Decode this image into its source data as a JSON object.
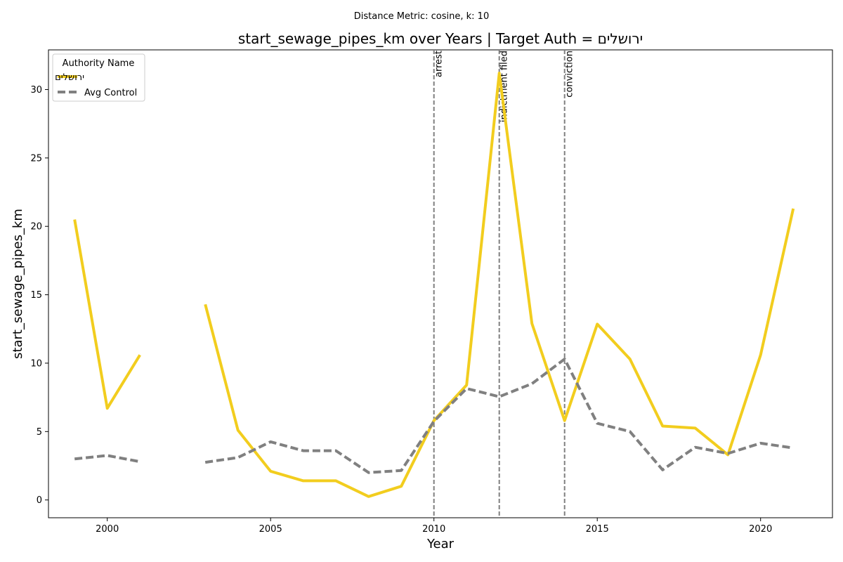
{
  "chart_data": {
    "type": "line",
    "subtitle": "Distance Metric: cosine, k: 10",
    "title": "start_sewage_pipes_km over Years | Target Auth = ירושלים",
    "xlabel": "Year",
    "ylabel": "start_sewage_pipes_km",
    "xlim": [
      1998.2,
      2022.2
    ],
    "ylim": [
      -1.3,
      32.9
    ],
    "xticks": [
      2000,
      2005,
      2010,
      2015,
      2020
    ],
    "yticks": [
      0,
      5,
      10,
      15,
      20,
      25,
      30
    ],
    "legend": {
      "title": "Authority Name",
      "position": "upper-left"
    },
    "series": [
      {
        "name": "ירושלים",
        "color": "#f2cd1e",
        "style": "solid",
        "points": [
          [
            1999,
            20.5
          ],
          [
            2000,
            6.7
          ],
          [
            2001,
            10.6
          ],
          [
            2002,
            null
          ],
          [
            2003,
            14.3
          ],
          [
            2004,
            5.1
          ],
          [
            2005,
            2.1
          ],
          [
            2006,
            1.4
          ],
          [
            2007,
            1.4
          ],
          [
            2008,
            0.25
          ],
          [
            2009,
            1.0
          ],
          [
            2010,
            5.8
          ],
          [
            2011,
            8.4
          ],
          [
            2012,
            31.2
          ],
          [
            2013,
            12.9
          ],
          [
            2014,
            5.8
          ],
          [
            2015,
            12.85
          ],
          [
            2016,
            10.3
          ],
          [
            2017,
            5.4
          ],
          [
            2018,
            5.25
          ],
          [
            2019,
            3.3
          ],
          [
            2020,
            10.6
          ],
          [
            2021,
            21.3
          ]
        ]
      },
      {
        "name": "Avg Control",
        "color": "#808080",
        "style": "dashed",
        "points": [
          [
            1999,
            3.0
          ],
          [
            2000,
            3.25
          ],
          [
            2001,
            2.8
          ],
          [
            2002,
            null
          ],
          [
            2003,
            2.75
          ],
          [
            2004,
            3.1
          ],
          [
            2005,
            4.25
          ],
          [
            2006,
            3.6
          ],
          [
            2007,
            3.6
          ],
          [
            2008,
            2.0
          ],
          [
            2009,
            2.15
          ],
          [
            2010,
            5.75
          ],
          [
            2011,
            8.15
          ],
          [
            2012,
            7.55
          ],
          [
            2013,
            8.5
          ],
          [
            2014,
            10.3
          ],
          [
            2015,
            5.6
          ],
          [
            2016,
            5.0
          ],
          [
            2017,
            2.2
          ],
          [
            2018,
            3.85
          ],
          [
            2019,
            3.4
          ],
          [
            2020,
            4.15
          ],
          [
            2021,
            3.8
          ]
        ]
      }
    ],
    "events": [
      {
        "x": 2010,
        "label": "arrest"
      },
      {
        "x": 2012,
        "label": "indictment filed"
      },
      {
        "x": 2014,
        "label": "conviction"
      }
    ]
  }
}
